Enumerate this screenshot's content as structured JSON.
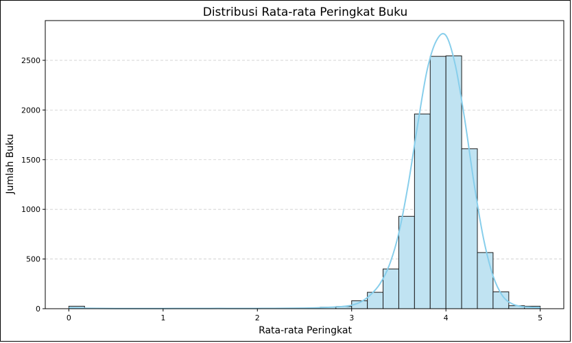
{
  "chart_data": {
    "type": "bar",
    "title": "Distribusi Rata-rata Peringkat Buku",
    "xlabel": "Rata-rata Peringkat",
    "ylabel": "Jumlah Buku",
    "xlim": [
      -0.25,
      5.25
    ],
    "ylim": [
      0,
      2900
    ],
    "xticks": [
      0,
      1,
      2,
      3,
      4,
      5
    ],
    "yticks": [
      0,
      500,
      1000,
      1500,
      2000,
      2500
    ],
    "grid": "horizontal dashed",
    "bin_width": 0.1667,
    "bars": [
      {
        "x0": 0.0,
        "value": 25
      },
      {
        "x0": 0.1667,
        "value": 2
      },
      {
        "x0": 0.3333,
        "value": 1
      },
      {
        "x0": 0.5,
        "value": 1
      },
      {
        "x0": 0.6667,
        "value": 1
      },
      {
        "x0": 0.8333,
        "value": 1
      },
      {
        "x0": 1.0,
        "value": 3
      },
      {
        "x0": 1.1667,
        "value": 2
      },
      {
        "x0": 1.3333,
        "value": 1
      },
      {
        "x0": 1.5,
        "value": 1
      },
      {
        "x0": 1.6667,
        "value": 2
      },
      {
        "x0": 1.8333,
        "value": 2
      },
      {
        "x0": 2.0,
        "value": 3
      },
      {
        "x0": 2.1667,
        "value": 2
      },
      {
        "x0": 2.3333,
        "value": 3
      },
      {
        "x0": 2.5,
        "value": 4
      },
      {
        "x0": 2.6667,
        "value": 15
      },
      {
        "x0": 2.8333,
        "value": 22
      },
      {
        "x0": 3.0,
        "value": 80
      },
      {
        "x0": 3.1667,
        "value": 165
      },
      {
        "x0": 3.3333,
        "value": 400
      },
      {
        "x0": 3.5,
        "value": 930
      },
      {
        "x0": 3.6667,
        "value": 1960
      },
      {
        "x0": 3.8333,
        "value": 2540
      },
      {
        "x0": 4.0,
        "value": 2545
      },
      {
        "x0": 4.1667,
        "value": 1610
      },
      {
        "x0": 4.3333,
        "value": 565
      },
      {
        "x0": 4.5,
        "value": 170
      },
      {
        "x0": 4.6667,
        "value": 30
      },
      {
        "x0": 4.8333,
        "value": 25
      }
    ],
    "kde": {
      "x": [
        0.0,
        0.2,
        0.5,
        1.0,
        1.5,
        2.0,
        2.5,
        2.7,
        2.9,
        3.0,
        3.1,
        3.2,
        3.3,
        3.4,
        3.5,
        3.6,
        3.7,
        3.8,
        3.9,
        4.0,
        4.1,
        4.2,
        4.3,
        4.4,
        4.5,
        4.6,
        4.7,
        4.8,
        4.9,
        5.0
      ],
      "y": [
        8,
        4,
        2,
        2,
        3,
        3,
        6,
        12,
        22,
        35,
        70,
        140,
        250,
        440,
        760,
        1250,
        1850,
        2400,
        2700,
        2750,
        2450,
        1900,
        1250,
        700,
        330,
        130,
        50,
        22,
        15,
        10
      ]
    },
    "colors": {
      "bar_fill": "#c0e3f2",
      "bar_edge": "#1a1a1a",
      "kde_line": "#87ceeb",
      "grid": "#cccccc"
    }
  }
}
